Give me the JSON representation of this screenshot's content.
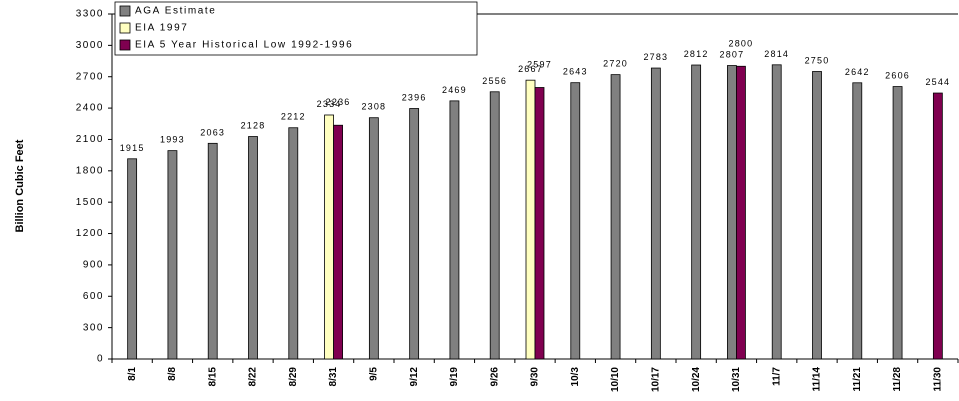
{
  "chart_data": {
    "type": "bar",
    "y_label": "Billion Cubic Feet",
    "categories": [
      "8/1",
      "8/8",
      "8/15",
      "8/22",
      "8/29",
      "8/31",
      "9/5",
      "9/12",
      "9/19",
      "9/26",
      "9/30",
      "10/3",
      "10/10",
      "10/17",
      "10/24",
      "10/31",
      "11/7",
      "11/14",
      "11/21",
      "11/28",
      "11/30"
    ],
    "series": [
      {
        "name": "AGA Estimate",
        "color": "#808080",
        "values": [
          1915,
          1993,
          2063,
          2128,
          2212,
          null,
          2308,
          2396,
          2469,
          2556,
          null,
          2643,
          2720,
          2783,
          2812,
          2807,
          2814,
          2750,
          2642,
          2606,
          null
        ]
      },
      {
        "name": "EIA 1997",
        "color": "#ffffc0",
        "values": [
          null,
          null,
          null,
          null,
          null,
          2334,
          null,
          null,
          null,
          null,
          2667,
          null,
          null,
          null,
          null,
          null,
          null,
          null,
          null,
          null,
          null
        ]
      },
      {
        "name": "EIA 5 Year Historical Low 1992-1996",
        "color": "#800050",
        "values": [
          null,
          null,
          null,
          null,
          null,
          2236,
          null,
          null,
          null,
          null,
          2597,
          null,
          null,
          null,
          null,
          2800,
          null,
          null,
          null,
          null,
          2544
        ]
      }
    ],
    "ylim": [
      0,
      3300
    ],
    "yticks": [
      0,
      300,
      600,
      900,
      1200,
      1500,
      1800,
      2100,
      2400,
      2700,
      3000,
      3300
    ],
    "legend": "upper left"
  }
}
